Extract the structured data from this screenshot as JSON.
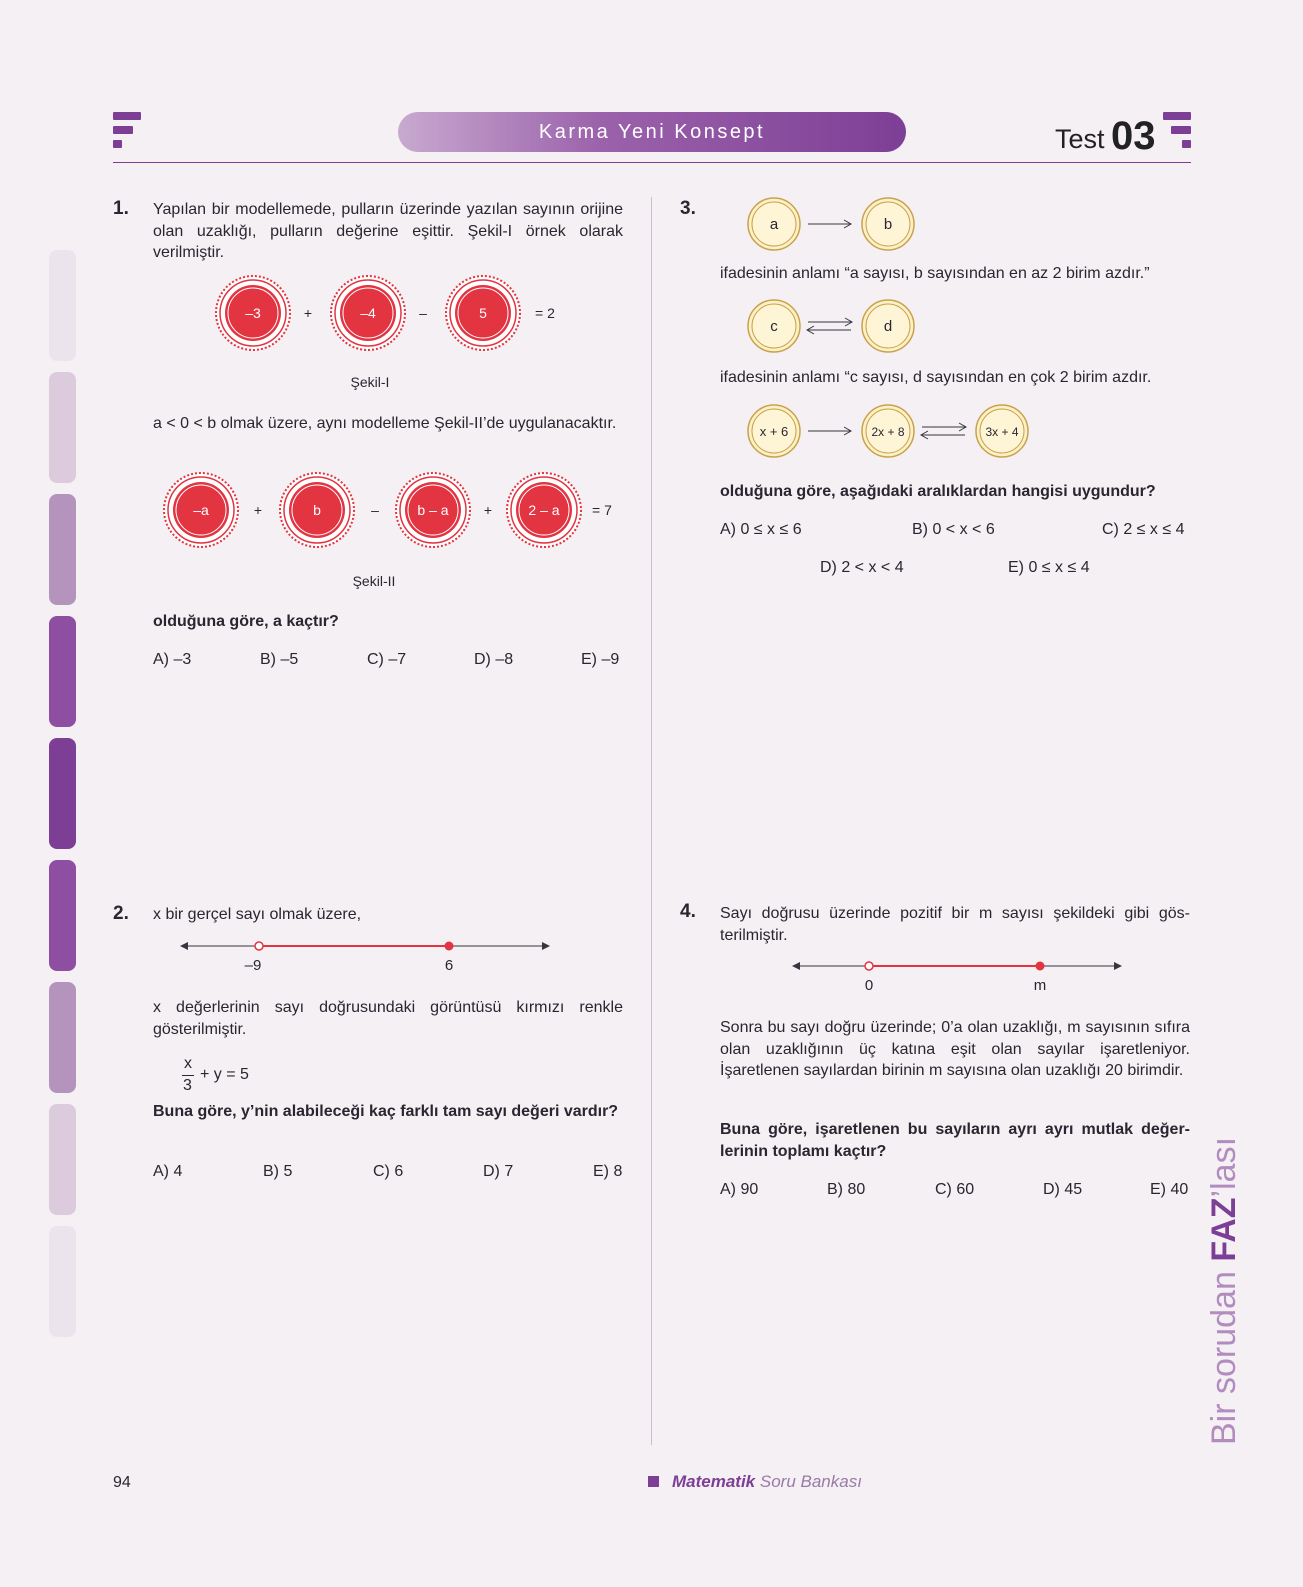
{
  "header": {
    "banner": "Karma Yeni Konsept",
    "test_label": "Test",
    "test_number": "03"
  },
  "q1": {
    "number": "1.",
    "text": "Yapılan bir modellemede, pulların üzerinde yazılan sayının orijine olan uzaklığı, pulların değerine eşittir. Şekil-I örnek olarak verilmiştir.",
    "fig1": {
      "chips": [
        "–3",
        "–4",
        "5"
      ],
      "ops": [
        "+",
        "–"
      ],
      "result": "= 2",
      "caption": "Şekil-I"
    },
    "text2": "a < 0 < b olmak üzere, aynı modelleme Şekil-II’de uygulana­caktır.",
    "fig2": {
      "chips": [
        "–a",
        "b",
        "b – a",
        "2 – a"
      ],
      "ops": [
        "+",
        "–",
        "+"
      ],
      "result": "= 7",
      "caption": "Şekil-II"
    },
    "question": "olduğuna göre, a kaçtır?",
    "options": [
      "A) –3",
      "B) –5",
      "C) –7",
      "D) –8",
      "E) –9"
    ]
  },
  "q2": {
    "number": "2.",
    "text": "x bir gerçel sayı olmak üzere,",
    "line": {
      "left_label": "–9",
      "right_label": "6"
    },
    "text2": "x değerlerinin sayı doğrusundaki görüntüsü kırmızı renkle gösterilmiştir.",
    "equation": {
      "num": "x",
      "den": "3",
      "rest": "+ y = 5"
    },
    "question": "Buna göre, y’nin alabileceği kaç farklı tam sayı değeri var­dır?",
    "options": [
      "A) 4",
      "B) 5",
      "C) 6",
      "D) 7",
      "E) 8"
    ]
  },
  "q3": {
    "number": "3.",
    "row1": {
      "left": "a",
      "right": "b"
    },
    "text1": "ifadesinin anlamı “a sayısı, b sayısından en az 2 birim azdır.”",
    "row2": {
      "left": "c",
      "right": "d"
    },
    "text2": "ifadesinin anlamı “c sayısı, d sayısından en çok 2 birim azdır.",
    "row3": {
      "a": "x + 6",
      "b": "2x + 8",
      "c": "3x + 4"
    },
    "question": "olduğuna göre, aşağıdaki aralıklardan hangisi uygundur?",
    "options": [
      "A) 0 ≤ x ≤ 6",
      "B) 0 < x < 6",
      "C) 2 ≤ x ≤ 4",
      "D) 2 < x < 4",
      "E) 0 ≤ x ≤ 4"
    ]
  },
  "q4": {
    "number": "4.",
    "text": "Sayı doğrusu üzerinde pozitif bir m sayısı şekildeki gibi gös­terilmiştir.",
    "line": {
      "left_label": "0",
      "right_label": "m"
    },
    "text2": "Sonra bu sayı doğru üzerinde; 0’a olan uzaklığı, m sayısının sıfıra olan uzaklığının üç katına eşit olan sayılar işaretleniyor. İşaretlenen sayılardan birinin m sayısına olan uzaklığı 20 bi­rimdir.",
    "question": "Buna göre, işaretlenen bu sayıların ayrı ayrı mutlak değer­lerinin toplamı kaçtır?",
    "options": [
      "A) 90",
      "B) 80",
      "C) 60",
      "D) 45",
      "E) 40"
    ]
  },
  "footer": {
    "page": "94",
    "brand_bold": "Matematik",
    "brand_rest": "Soru Bankası"
  },
  "side": {
    "prefix": "Bir sorudan ",
    "highlight": "FAZ",
    "suffix": "’lası"
  },
  "colors": {
    "accent": "#7d3f95",
    "chip_red": "#e23441",
    "chip_yellow": "#fbf0c8",
    "line_red": "#e23441"
  }
}
